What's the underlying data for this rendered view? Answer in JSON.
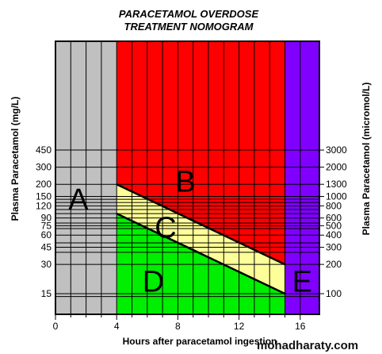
{
  "chart_data": {
    "type": "area",
    "title_lines": [
      "PARACETAMOL OVERDOSE",
      "TREATMENT NOMOGRAM"
    ],
    "xlabel": "Hours after paracetamol ingestion",
    "ylabel_left": "Plasma Paracetamol (mg/L)",
    "ylabel_right": "Plasma Paracetamol (micromol/L)",
    "xlim": [
      0,
      16.8
    ],
    "ylim": [
      10,
      450
    ],
    "y_scale": "log",
    "x_ticks": [
      "0",
      "4",
      "8",
      "12",
      "16"
    ],
    "x_tick_values": [
      0,
      4,
      8,
      12,
      16
    ],
    "y_ticks_left": [
      "450",
      "300",
      "200",
      "150",
      "120",
      "90",
      "75",
      "60",
      "45",
      "30",
      "15"
    ],
    "y_tick_values_left": [
      450,
      300,
      200,
      150,
      120,
      90,
      75,
      60,
      45,
      30,
      15
    ],
    "y_ticks_right": [
      "3000",
      "2000",
      "1300",
      "1000",
      "800",
      "600",
      "500",
      "400",
      "300",
      "200",
      "100"
    ],
    "y_tick_values_right": [
      3000,
      2000,
      1300,
      1000,
      800,
      600,
      500,
      400,
      300,
      200,
      100
    ],
    "extra_y_gridlines": [
      140,
      130,
      110,
      100,
      80,
      70,
      50,
      40,
      14
    ],
    "lines": [
      {
        "x": [
          4,
          15
        ],
        "y": [
          200,
          30
        ]
      },
      {
        "x": [
          4,
          15
        ],
        "y": [
          100,
          15
        ]
      }
    ],
    "zones": [
      {
        "label": "A",
        "x": [
          0,
          4
        ],
        "color": "#c0c0c0"
      },
      {
        "label": "B",
        "color": "#ff0000"
      },
      {
        "label": "C",
        "color": "#ffff99"
      },
      {
        "label": "D",
        "color": "#00ee00"
      },
      {
        "label": "E",
        "x": [
          15,
          16.8
        ],
        "color": "#8000ff"
      }
    ],
    "grid": true
  },
  "watermark": "mohadharaty.com"
}
